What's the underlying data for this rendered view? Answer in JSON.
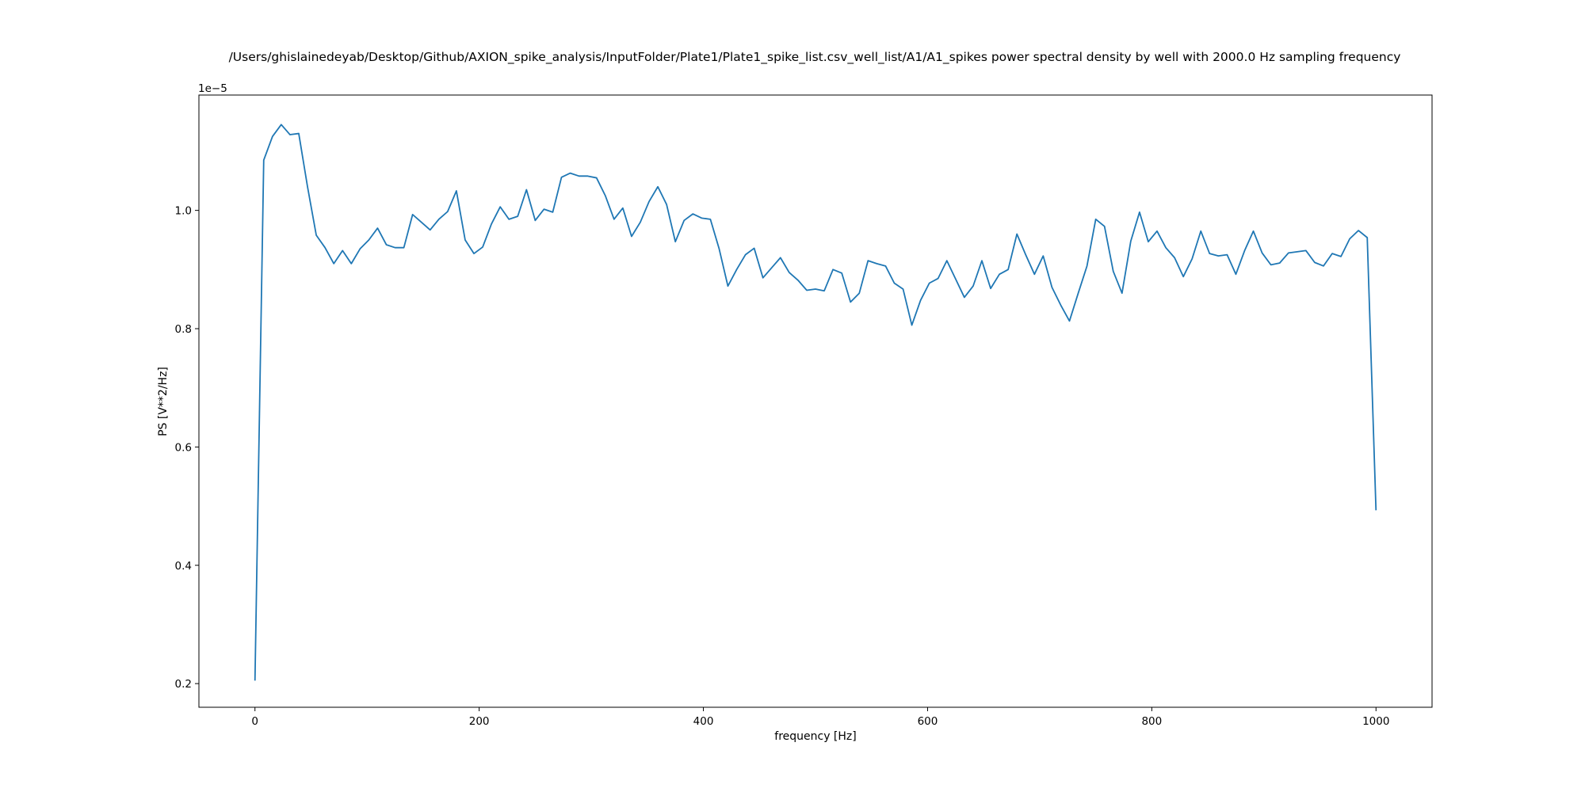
{
  "chart_data": {
    "type": "line",
    "title": "/Users/ghislainedeyab/Desktop/Github/AXION_spike_analysis/InputFolder/Plate1/Plate1_spike_list.csv_well_list/A1/A1_spikes power spectral density by well with 2000.0 Hz sampling frequency",
    "xlabel": "frequency [Hz]",
    "ylabel": "PS [V**2/Hz]",
    "offset_label": "1e−5",
    "xlim": [
      -50,
      1050
    ],
    "ylim": [
      0.16,
      1.195
    ],
    "x_ticks": [
      0,
      200,
      400,
      600,
      800,
      1000
    ],
    "x_tick_labels": [
      "0",
      "200",
      "400",
      "600",
      "800",
      "1000"
    ],
    "y_ticks": [
      0.2,
      0.4,
      0.6,
      0.8,
      1.0
    ],
    "y_tick_labels": [
      "0.2",
      "0.4",
      "0.6",
      "0.8",
      "1.0"
    ],
    "grid": false,
    "color": "#1f77b4",
    "x": [
      0,
      7.8125,
      15.625,
      23.4375,
      31.25,
      39.0625,
      46.875,
      54.6875,
      62.5,
      70.3125,
      78.125,
      85.9375,
      93.75,
      101.5625,
      109.375,
      117.1875,
      125,
      132.8125,
      140.625,
      148.4375,
      156.25,
      164.0625,
      171.875,
      179.6875,
      187.5,
      195.3125,
      203.125,
      210.9375,
      218.75,
      226.5625,
      234.375,
      242.1875,
      250,
      257.8125,
      265.625,
      273.4375,
      281.25,
      289.0625,
      296.875,
      304.6875,
      312.5,
      320.3125,
      328.125,
      335.9375,
      343.75,
      351.5625,
      359.375,
      367.1875,
      375,
      382.8125,
      390.625,
      398.4375,
      406.25,
      414.0625,
      421.875,
      429.6875,
      437.5,
      445.3125,
      453.125,
      460.9375,
      468.75,
      476.5625,
      484.375,
      492.1875,
      500,
      507.8125,
      515.625,
      523.4375,
      531.25,
      539.0625,
      546.875,
      554.6875,
      562.5,
      570.3125,
      578.125,
      585.9375,
      593.75,
      601.5625,
      609.375,
      617.1875,
      625,
      632.8125,
      640.625,
      648.4375,
      656.25,
      664.0625,
      671.875,
      679.6875,
      687.5,
      695.3125,
      703.125,
      710.9375,
      718.75,
      726.5625,
      734.375,
      742.1875,
      750,
      757.8125,
      765.625,
      773.4375,
      781.25,
      789.0625,
      796.875,
      804.6875,
      812.5,
      820.3125,
      828.125,
      835.9375,
      843.75,
      851.5625,
      859.375,
      867.1875,
      875,
      882.8125,
      890.625,
      898.4375,
      906.25,
      914.0625,
      921.875,
      929.6875,
      937.5,
      945.3125,
      953.125,
      960.9375,
      968.75,
      976.5625,
      984.375,
      992.1875,
      1000
    ],
    "series": [
      {
        "values": [
          0.205,
          1.085,
          1.125,
          1.145,
          1.128,
          1.13,
          1.04,
          0.958,
          0.937,
          0.91,
          0.932,
          0.91,
          0.935,
          0.95,
          0.97,
          0.942,
          0.937,
          0.937,
          0.993,
          0.98,
          0.967,
          0.985,
          0.998,
          1.033,
          0.95,
          0.927,
          0.938,
          0.977,
          1.006,
          0.985,
          0.99,
          1.035,
          0.983,
          1.002,
          0.997,
          1.056,
          1.063,
          1.058,
          1.058,
          1.055,
          1.025,
          0.985,
          1.004,
          0.956,
          0.98,
          1.015,
          1.04,
          1.01,
          0.947,
          0.983,
          0.994,
          0.987,
          0.985,
          0.935,
          0.872,
          0.9,
          0.925,
          0.936,
          0.886,
          0.903,
          0.92,
          0.895,
          0.882,
          0.865,
          0.867,
          0.864,
          0.9,
          0.894,
          0.845,
          0.86,
          0.915,
          0.91,
          0.906,
          0.877,
          0.867,
          0.806,
          0.848,
          0.877,
          0.885,
          0.915,
          0.884,
          0.853,
          0.872,
          0.915,
          0.868,
          0.892,
          0.9,
          0.96,
          0.925,
          0.892,
          0.923,
          0.87,
          0.84,
          0.813,
          0.86,
          0.906,
          0.985,
          0.973,
          0.897,
          0.86,
          0.948,
          0.997,
          0.947,
          0.965,
          0.937,
          0.92,
          0.888,
          0.918,
          0.965,
          0.927,
          0.923,
          0.925,
          0.892,
          0.932,
          0.965,
          0.928,
          0.908,
          0.911,
          0.928,
          0.93,
          0.932,
          0.912,
          0.906,
          0.927,
          0.922,
          0.952,
          0.966,
          0.954,
          0.493
        ]
      }
    ]
  }
}
